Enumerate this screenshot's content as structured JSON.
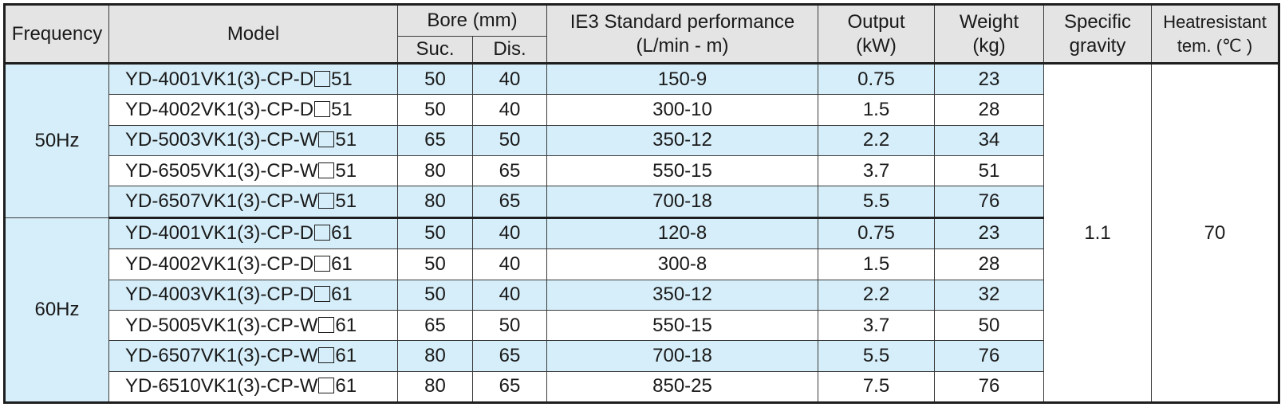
{
  "headers": {
    "frequency": "Frequency",
    "model": "Model",
    "bore": "Bore (mm)",
    "suc": "Suc.",
    "dis": "Dis.",
    "perf_line1": "IE3  Standard performance",
    "perf_line2": "(L/min - m)",
    "output_line1": "Output",
    "output_line2": "(kW)",
    "weight_line1": "Weight",
    "weight_line2": "(kg)",
    "sg_line1": "Specific",
    "sg_line2": "gravity",
    "heat_line1": "Heatresistant",
    "heat_line2": "tem. (℃ )"
  },
  "merged": {
    "specific_gravity": "1.1",
    "heat_temp": "70"
  },
  "groups": [
    {
      "frequency": "50Hz",
      "rows": [
        {
          "model_prefix": "YD-4001VK1(3)-CP-D",
          "model_suffix": "51",
          "suc": "50",
          "dis": "40",
          "perf": "150-9",
          "output": "0.75",
          "weight": "23"
        },
        {
          "model_prefix": "YD-4002VK1(3)-CP-D",
          "model_suffix": "51",
          "suc": "50",
          "dis": "40",
          "perf": "300-10",
          "output": "1.5",
          "weight": "28"
        },
        {
          "model_prefix": "YD-5003VK1(3)-CP-W",
          "model_suffix": "51",
          "suc": "65",
          "dis": "50",
          "perf": "350-12",
          "output": "2.2",
          "weight": "34"
        },
        {
          "model_prefix": "YD-6505VK1(3)-CP-W",
          "model_suffix": "51",
          "suc": "80",
          "dis": "65",
          "perf": "550-15",
          "output": "3.7",
          "weight": "51"
        },
        {
          "model_prefix": "YD-6507VK1(3)-CP-W",
          "model_suffix": "51",
          "suc": "80",
          "dis": "65",
          "perf": "700-18",
          "output": "5.5",
          "weight": "76"
        }
      ]
    },
    {
      "frequency": "60Hz",
      "rows": [
        {
          "model_prefix": "YD-4001VK1(3)-CP-D",
          "model_suffix": "61",
          "suc": "50",
          "dis": "40",
          "perf": "120-8",
          "output": "0.75",
          "weight": "23"
        },
        {
          "model_prefix": "YD-4002VK1(3)-CP-D",
          "model_suffix": "61",
          "suc": "50",
          "dis": "40",
          "perf": "300-8",
          "output": "1.5",
          "weight": "28"
        },
        {
          "model_prefix": "YD-4003VK1(3)-CP-D",
          "model_suffix": "61",
          "suc": "50",
          "dis": "40",
          "perf": "350-12",
          "output": "2.2",
          "weight": "32"
        },
        {
          "model_prefix": "YD-5005VK1(3)-CP-W",
          "model_suffix": "61",
          "suc": "65",
          "dis": "50",
          "perf": "550-15",
          "output": "3.7",
          "weight": "50"
        },
        {
          "model_prefix": "YD-6507VK1(3)-CP-W",
          "model_suffix": "61",
          "suc": "80",
          "dis": "65",
          "perf": "700-18",
          "output": "5.5",
          "weight": "76"
        },
        {
          "model_prefix": "YD-6510VK1(3)-CP-W",
          "model_suffix": "61",
          "suc": "80",
          "dis": "65",
          "perf": "850-25",
          "output": "7.5",
          "weight": "76"
        }
      ]
    }
  ],
  "colors": {
    "row_blue": "#d6eef9",
    "header_gray": "#e4e4e4",
    "border": "#1e1e1e"
  }
}
